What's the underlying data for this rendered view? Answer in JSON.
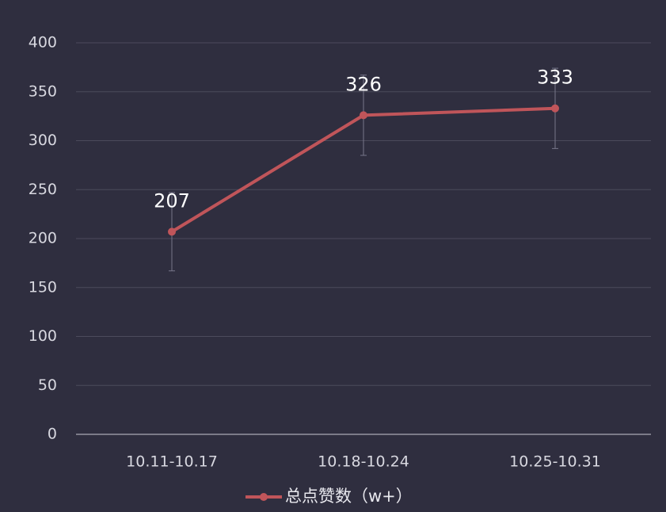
{
  "chart_data": {
    "type": "line",
    "categories": [
      "10.11-10.17",
      "10.18-10.24",
      "10.25-10.31"
    ],
    "series": [
      {
        "name": "总点赞数（w+）",
        "color": "#c0555a",
        "values": [
          207,
          326,
          333
        ],
        "errors": [
          40,
          41,
          41
        ]
      }
    ],
    "ylim": [
      0,
      400
    ],
    "yticks": [
      0,
      50,
      100,
      150,
      200,
      250,
      300,
      350,
      400
    ],
    "grid": true,
    "legend": "bottom"
  }
}
